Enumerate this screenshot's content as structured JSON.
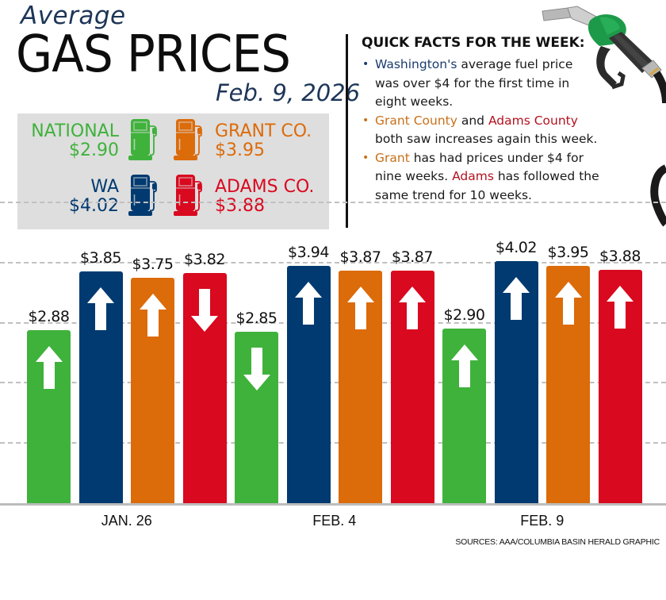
{
  "header": {
    "kicker": "Average",
    "title": "GAS PRICES",
    "date": "Feb. 9, 2026"
  },
  "colors": {
    "national": "#3fb23b",
    "wa": "#003a70",
    "grant": "#dc6b0a",
    "adams": "#d9091f",
    "legend_bg": "#dedede",
    "grid": "#c0c0c0"
  },
  "legend": {
    "items": [
      {
        "name": "NATIONAL",
        "price": "$2.90",
        "color": "#3fb23b",
        "icon": "gas-pump-icon"
      },
      {
        "name": "GRANT CO.",
        "price": "$3.95",
        "color": "#dc6b0a",
        "icon": "gas-pump-icon"
      },
      {
        "name": "WA",
        "price": "$4.02",
        "color": "#003a70",
        "icon": "gas-pump-icon"
      },
      {
        "name": "ADAMS CO.",
        "price": "$3.88",
        "color": "#d9091f",
        "icon": "gas-pump-icon"
      }
    ]
  },
  "facts": {
    "title": "QUICK FACTS FOR THE WEEK:",
    "items": [
      {
        "parts": [
          {
            "text": "Washington's",
            "color": "navy"
          },
          {
            "text": " average fuel price was over $4 for the first time in eight weeks.",
            "color": ""
          }
        ],
        "bullet_color": "navy"
      },
      {
        "parts": [
          {
            "text": "Grant County",
            "color": "orange"
          },
          {
            "text": " and ",
            "color": ""
          },
          {
            "text": "Adams County",
            "color": "red"
          },
          {
            "text": " both saw increases again this week.",
            "color": ""
          }
        ],
        "bullet_color": "orange"
      },
      {
        "parts": [
          {
            "text": "Grant",
            "color": "orange"
          },
          {
            "text": " has had prices under $4 for nine weeks. ",
            "color": ""
          },
          {
            "text": "Adams",
            "color": "red"
          },
          {
            "text": " has followed the same trend for 10 weeks.",
            "color": ""
          }
        ],
        "bullet_color": "orange"
      }
    ]
  },
  "chart_data": {
    "type": "bar",
    "title": "Average Gas Prices",
    "subtitle": "Feb. 9, 2026",
    "categories": [
      "JAN. 26",
      "FEB. 4",
      "FEB. 9"
    ],
    "series": [
      {
        "name": "National",
        "color": "#3fb23b",
        "values": [
          2.88,
          2.85,
          2.9
        ],
        "labels": [
          "$2.88",
          "$2.85",
          "$2.90"
        ],
        "trend": [
          "up",
          "down",
          "up"
        ]
      },
      {
        "name": "WA",
        "color": "#003a70",
        "values": [
          3.85,
          3.94,
          4.02
        ],
        "labels": [
          "$3.85",
          "$3.94",
          "$4.02"
        ],
        "trend": [
          "up",
          "up",
          "up"
        ]
      },
      {
        "name": "Grant Co.",
        "color": "#dc6b0a",
        "values": [
          3.75,
          3.87,
          3.95
        ],
        "labels": [
          "$3.75",
          "$3.87",
          "$3.95"
        ],
        "trend": [
          "up",
          "up",
          "up"
        ]
      },
      {
        "name": "Adams Co.",
        "color": "#d9091f",
        "values": [
          3.82,
          3.87,
          3.88
        ],
        "labels": [
          "$3.82",
          "$3.87",
          "$3.88"
        ],
        "trend": [
          "down",
          "up",
          "up"
        ]
      }
    ],
    "xlabel": "",
    "ylabel": "",
    "ylim": [
      0,
      5
    ],
    "gridlines": [
      1,
      2,
      3,
      4,
      5
    ],
    "grid": true,
    "legend_position": "top-left"
  },
  "footer": {
    "source": "SOURCES: AAA/COLUMBIA BASIN HERALD GRAPHIC"
  }
}
